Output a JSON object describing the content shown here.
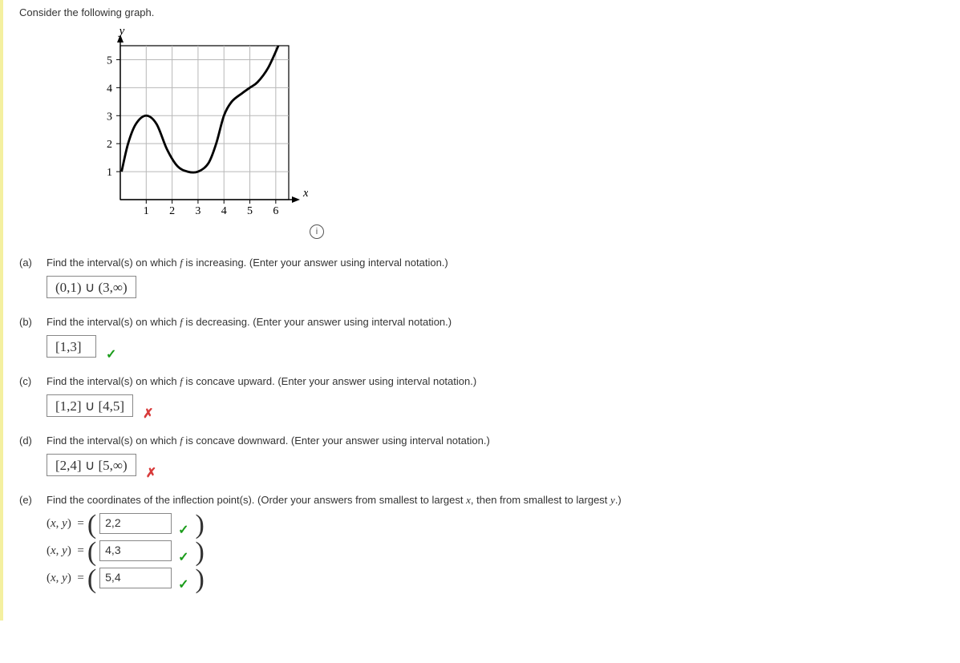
{
  "title": "Consider the following graph.",
  "graph": {
    "axis_y_label": "y",
    "axis_x_label": "x",
    "x_ticks": [
      1,
      2,
      3,
      4,
      5,
      6
    ],
    "y_ticks": [
      1,
      2,
      3,
      4,
      5
    ],
    "xlim": [
      0,
      6.5
    ],
    "ylim": [
      0,
      5.5
    ],
    "grid_color": "#b8b8b8",
    "axis_color": "#000000",
    "background_color": "#ffffff",
    "curve_color": "#000000",
    "curve_stroke_width": 2.8,
    "curve_points": [
      {
        "x": 0.05,
        "y": 1
      },
      {
        "x": 0.3,
        "y": 2
      },
      {
        "x": 0.6,
        "y": 2.7
      },
      {
        "x": 1.0,
        "y": 3
      },
      {
        "x": 1.4,
        "y": 2.7
      },
      {
        "x": 1.8,
        "y": 1.8
      },
      {
        "x": 2.2,
        "y": 1.2
      },
      {
        "x": 2.6,
        "y": 1.0
      },
      {
        "x": 3.0,
        "y": 1.0
      },
      {
        "x": 3.4,
        "y": 1.3
      },
      {
        "x": 3.7,
        "y": 2.0
      },
      {
        "x": 4.0,
        "y": 3.0
      },
      {
        "x": 4.3,
        "y": 3.5
      },
      {
        "x": 4.7,
        "y": 3.8
      },
      {
        "x": 5.0,
        "y": 4.0
      },
      {
        "x": 5.3,
        "y": 4.2
      },
      {
        "x": 5.7,
        "y": 4.7
      },
      {
        "x": 6.1,
        "y": 5.5
      }
    ]
  },
  "info_icon_glyph": "i",
  "parts": {
    "a": {
      "label": "(a)",
      "question": "Find the interval(s) on which f is increasing. (Enter your answer using interval notation.)",
      "answer_display": "(0,1) ∪ (3,∞)",
      "status": "none"
    },
    "b": {
      "label": "(b)",
      "question": "Find the interval(s) on which f is decreasing. (Enter your answer using interval notation.)",
      "answer_display": "[1,3]",
      "status": "correct"
    },
    "c": {
      "label": "(c)",
      "question": "Find the interval(s) on which f is concave upward. (Enter your answer using interval notation.)",
      "answer_display": "[1,2] ∪ [4,5]",
      "status": "wrong"
    },
    "d": {
      "label": "(d)",
      "question": "Find the interval(s) on which f is concave downward. (Enter your answer using interval notation.)",
      "answer_display": "[2,4] ∪ [5,∞)",
      "status": "wrong"
    },
    "e": {
      "label": "(e)",
      "question": "Find the coordinates of the inflection point(s). (Order your answers from smallest to largest x, then from smallest to largest y.)",
      "points": [
        {
          "prefix": "(x, y)  =",
          "value": "2,2",
          "status": "correct"
        },
        {
          "prefix": "(x, y)  =",
          "value": "4,3",
          "status": "correct"
        },
        {
          "prefix": "(x, y)  =",
          "value": "5,4",
          "status": "correct"
        }
      ]
    }
  },
  "marks": {
    "correct": "✓",
    "wrong": "✗"
  }
}
